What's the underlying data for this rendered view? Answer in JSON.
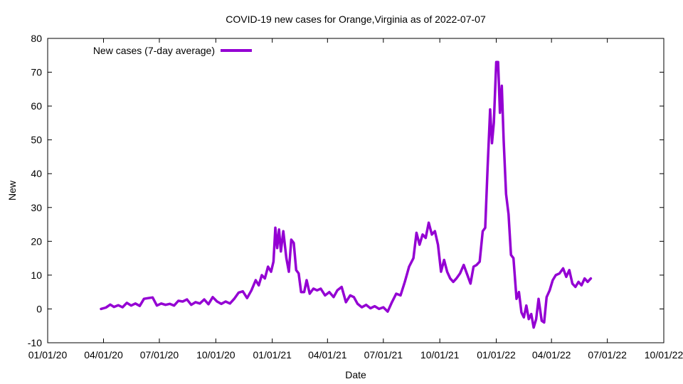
{
  "chart_data": {
    "type": "line",
    "title": "COVID-19 new cases for Orange,Virginia as of 2022-07-07",
    "xlabel": "Date",
    "ylabel": "New",
    "ylim": [
      -10,
      80
    ],
    "yticks": [
      -10,
      0,
      10,
      20,
      30,
      40,
      50,
      60,
      70,
      80
    ],
    "xlim": [
      "2020-01-01",
      "2022-10-01"
    ],
    "xticks": [
      {
        "date": "2020-01-01",
        "label": "01/01/20"
      },
      {
        "date": "2020-04-01",
        "label": "04/01/20"
      },
      {
        "date": "2020-07-01",
        "label": "07/01/20"
      },
      {
        "date": "2020-10-01",
        "label": "10/01/20"
      },
      {
        "date": "2021-01-01",
        "label": "01/01/21"
      },
      {
        "date": "2021-04-01",
        "label": "04/01/21"
      },
      {
        "date": "2021-07-01",
        "label": "07/01/21"
      },
      {
        "date": "2021-10-01",
        "label": "10/01/21"
      },
      {
        "date": "2022-01-01",
        "label": "01/01/22"
      },
      {
        "date": "2022-04-01",
        "label": "04/01/22"
      },
      {
        "date": "2022-07-01",
        "label": "07/01/22"
      },
      {
        "date": "2022-10-01",
        "label": "10/01/22"
      }
    ],
    "legend_position": "top-left",
    "grid": false,
    "series": [
      {
        "name": "New cases (7-day average)",
        "color": "#9400d3",
        "points": [
          [
            "2020-03-28",
            0.0
          ],
          [
            "2020-04-05",
            0.4
          ],
          [
            "2020-04-12",
            1.3
          ],
          [
            "2020-04-18",
            0.6
          ],
          [
            "2020-04-25",
            1.1
          ],
          [
            "2020-05-02",
            0.5
          ],
          [
            "2020-05-09",
            1.8
          ],
          [
            "2020-05-16",
            1.0
          ],
          [
            "2020-05-23",
            1.6
          ],
          [
            "2020-05-30",
            0.9
          ],
          [
            "2020-06-06",
            3.0
          ],
          [
            "2020-06-13",
            3.2
          ],
          [
            "2020-06-20",
            3.4
          ],
          [
            "2020-06-27",
            1.0
          ],
          [
            "2020-07-04",
            1.6
          ],
          [
            "2020-07-11",
            1.2
          ],
          [
            "2020-07-18",
            1.5
          ],
          [
            "2020-07-25",
            1.0
          ],
          [
            "2020-08-01",
            2.4
          ],
          [
            "2020-08-08",
            2.2
          ],
          [
            "2020-08-15",
            2.8
          ],
          [
            "2020-08-22",
            1.2
          ],
          [
            "2020-08-29",
            2.0
          ],
          [
            "2020-09-05",
            1.6
          ],
          [
            "2020-09-12",
            2.8
          ],
          [
            "2020-09-19",
            1.4
          ],
          [
            "2020-09-26",
            3.5
          ],
          [
            "2020-10-03",
            2.2
          ],
          [
            "2020-10-10",
            1.5
          ],
          [
            "2020-10-17",
            2.2
          ],
          [
            "2020-10-24",
            1.6
          ],
          [
            "2020-10-31",
            3.0
          ],
          [
            "2020-11-07",
            4.8
          ],
          [
            "2020-11-14",
            5.2
          ],
          [
            "2020-11-21",
            3.2
          ],
          [
            "2020-11-28",
            5.5
          ],
          [
            "2020-12-05",
            8.5
          ],
          [
            "2020-12-10",
            7.0
          ],
          [
            "2020-12-15",
            10.0
          ],
          [
            "2020-12-20",
            9.0
          ],
          [
            "2020-12-25",
            12.5
          ],
          [
            "2020-12-30",
            11.0
          ],
          [
            "2021-01-03",
            14.0
          ],
          [
            "2021-01-06",
            24.0
          ],
          [
            "2021-01-09",
            18.0
          ],
          [
            "2021-01-12",
            23.5
          ],
          [
            "2021-01-15",
            17.0
          ],
          [
            "2021-01-19",
            23.0
          ],
          [
            "2021-01-24",
            15.0
          ],
          [
            "2021-01-28",
            11.0
          ],
          [
            "2021-02-01",
            20.5
          ],
          [
            "2021-02-05",
            19.5
          ],
          [
            "2021-02-09",
            11.5
          ],
          [
            "2021-02-13",
            10.5
          ],
          [
            "2021-02-17",
            5.0
          ],
          [
            "2021-02-22",
            5.0
          ],
          [
            "2021-02-26",
            8.5
          ],
          [
            "2021-03-03",
            4.5
          ],
          [
            "2021-03-09",
            6.0
          ],
          [
            "2021-03-15",
            5.5
          ],
          [
            "2021-03-21",
            6.0
          ],
          [
            "2021-03-28",
            4.0
          ],
          [
            "2021-04-04",
            5.0
          ],
          [
            "2021-04-11",
            3.5
          ],
          [
            "2021-04-17",
            5.5
          ],
          [
            "2021-04-24",
            6.5
          ],
          [
            "2021-05-01",
            2.0
          ],
          [
            "2021-05-08",
            4.0
          ],
          [
            "2021-05-14",
            3.5
          ],
          [
            "2021-05-20",
            1.5
          ],
          [
            "2021-05-27",
            0.5
          ],
          [
            "2021-06-03",
            1.2
          ],
          [
            "2021-06-10",
            0.2
          ],
          [
            "2021-06-17",
            0.8
          ],
          [
            "2021-06-24",
            0.0
          ],
          [
            "2021-07-01",
            0.5
          ],
          [
            "2021-07-08",
            -0.8
          ],
          [
            "2021-07-15",
            2.0
          ],
          [
            "2021-07-22",
            4.5
          ],
          [
            "2021-07-29",
            4.0
          ],
          [
            "2021-08-05",
            8.0
          ],
          [
            "2021-08-12",
            12.5
          ],
          [
            "2021-08-19",
            15.0
          ],
          [
            "2021-08-24",
            22.5
          ],
          [
            "2021-08-29",
            19.0
          ],
          [
            "2021-09-03",
            22.0
          ],
          [
            "2021-09-08",
            21.0
          ],
          [
            "2021-09-13",
            25.5
          ],
          [
            "2021-09-18",
            22.0
          ],
          [
            "2021-09-23",
            23.0
          ],
          [
            "2021-09-28",
            19.0
          ],
          [
            "2021-10-03",
            11.0
          ],
          [
            "2021-10-08",
            14.5
          ],
          [
            "2021-10-13",
            11.0
          ],
          [
            "2021-10-18",
            9.0
          ],
          [
            "2021-10-23",
            8.0
          ],
          [
            "2021-10-28",
            9.0
          ],
          [
            "2021-11-03",
            10.5
          ],
          [
            "2021-11-09",
            13.0
          ],
          [
            "2021-11-15",
            10.0
          ],
          [
            "2021-11-20",
            7.5
          ],
          [
            "2021-11-25",
            12.5
          ],
          [
            "2021-11-30",
            13.0
          ],
          [
            "2021-12-05",
            14.0
          ],
          [
            "2021-12-10",
            23.0
          ],
          [
            "2021-12-14",
            24.0
          ],
          [
            "2021-12-18",
            42.0
          ],
          [
            "2021-12-22",
            59.0
          ],
          [
            "2021-12-25",
            49.0
          ],
          [
            "2021-12-28",
            55.0
          ],
          [
            "2022-01-01",
            73.0
          ],
          [
            "2022-01-04",
            73.0
          ],
          [
            "2022-01-07",
            58.0
          ],
          [
            "2022-01-10",
            66.0
          ],
          [
            "2022-01-13",
            50.0
          ],
          [
            "2022-01-17",
            34.0
          ],
          [
            "2022-01-21",
            28.0
          ],
          [
            "2022-01-25",
            16.0
          ],
          [
            "2022-01-29",
            15.0
          ],
          [
            "2022-02-03",
            3.0
          ],
          [
            "2022-02-07",
            5.0
          ],
          [
            "2022-02-11",
            -1.0
          ],
          [
            "2022-02-15",
            -2.5
          ],
          [
            "2022-02-19",
            1.0
          ],
          [
            "2022-02-23",
            -3.0
          ],
          [
            "2022-02-27",
            -1.5
          ],
          [
            "2022-03-03",
            -5.5
          ],
          [
            "2022-03-07",
            -3.0
          ],
          [
            "2022-03-11",
            3.0
          ],
          [
            "2022-03-16",
            -3.5
          ],
          [
            "2022-03-20",
            -4.0
          ],
          [
            "2022-03-24",
            3.5
          ],
          [
            "2022-03-29",
            5.5
          ],
          [
            "2022-04-03",
            8.5
          ],
          [
            "2022-04-08",
            10.0
          ],
          [
            "2022-04-14",
            10.5
          ],
          [
            "2022-04-20",
            12.0
          ],
          [
            "2022-04-25",
            9.5
          ],
          [
            "2022-04-30",
            11.5
          ],
          [
            "2022-05-05",
            7.5
          ],
          [
            "2022-05-10",
            6.5
          ],
          [
            "2022-05-15",
            8.0
          ],
          [
            "2022-05-20",
            7.0
          ],
          [
            "2022-05-25",
            9.0
          ],
          [
            "2022-05-30",
            8.0
          ],
          [
            "2022-06-04",
            9.0
          ]
        ]
      }
    ]
  }
}
